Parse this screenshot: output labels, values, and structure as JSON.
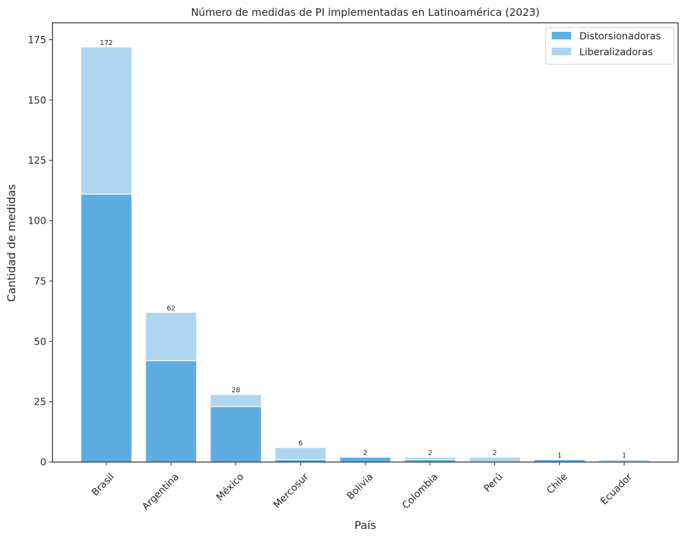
{
  "chart_data": {
    "type": "bar",
    "stacked": true,
    "title": "Número de medidas de PI implementadas en Latinoamérica (2023)",
    "xlabel": "País",
    "ylabel": "Cantidad de medidas",
    "categories": [
      "Brasil",
      "Argentina",
      "México",
      "Mercosur",
      "Bolivia",
      "Colombia",
      "Perú",
      "Chile",
      "Ecuador"
    ],
    "series": [
      {
        "name": "Distorsionadoras",
        "color": "#5dade2",
        "values": [
          111,
          42,
          23,
          1,
          2,
          1,
          0,
          1,
          0
        ]
      },
      {
        "name": "Liberalizadoras",
        "color": "#aed6f1",
        "values": [
          61,
          20,
          5,
          5,
          0,
          1,
          2,
          0,
          1
        ]
      }
    ],
    "totals": [
      172,
      62,
      28,
      6,
      2,
      2,
      2,
      1,
      1
    ],
    "ylim": [
      0,
      182
    ],
    "yticks": [
      0,
      25,
      50,
      75,
      100,
      125,
      150,
      175
    ],
    "grid": false,
    "legend_position": "top-right"
  }
}
